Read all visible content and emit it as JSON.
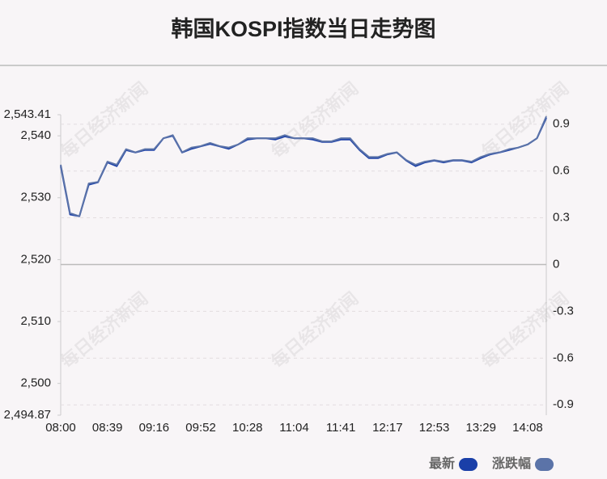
{
  "chart_data": {
    "type": "line",
    "title": "韩国KOSPI指数当日走势图",
    "watermark": "每日经济新闻",
    "categories": [
      "08:00",
      null,
      null,
      null,
      null,
      "08:39",
      null,
      null,
      null,
      null,
      "09:16",
      null,
      null,
      null,
      null,
      "09:52",
      null,
      null,
      null,
      null,
      "10:28",
      null,
      null,
      null,
      null,
      "11:04",
      null,
      null,
      null,
      null,
      "11:41",
      null,
      null,
      null,
      null,
      "12:17",
      null,
      null,
      null,
      null,
      "12:53",
      null,
      null,
      null,
      null,
      "13:29",
      null,
      null,
      null,
      null,
      "14:08",
      null,
      null
    ],
    "series": [
      {
        "name": "最新",
        "color": "#1a3fa8",
        "values": [
          2535.1,
          2527.3,
          2527.0,
          2532.1,
          2532.5,
          2535.7,
          2535.1,
          2537.7,
          2537.3,
          2537.7,
          2537.7,
          2539.6,
          2540.0,
          2537.3,
          2537.9,
          2538.3,
          2538.7,
          2538.3,
          2537.9,
          2538.6,
          2539.4,
          2539.6,
          2539.6,
          2539.4,
          2539.9,
          2539.6,
          2539.6,
          2539.4,
          2539.0,
          2539.0,
          2539.4,
          2539.4,
          2537.7,
          2536.4,
          2536.4,
          2537.0,
          2537.3,
          2536.0,
          2535.1,
          2535.7,
          2536.0,
          2535.7,
          2536.0,
          2536.0,
          2535.7,
          2536.4,
          2537.0,
          2537.3,
          2537.7,
          2538.1,
          2538.6,
          2539.6,
          2542.9
        ]
      },
      {
        "name": "涨跌幅",
        "color": "#5b73a8",
        "axis": "y2",
        "values": [
          0.64,
          0.33,
          0.31,
          0.52,
          0.53,
          0.66,
          0.64,
          0.74,
          0.72,
          0.74,
          0.74,
          0.81,
          0.83,
          0.72,
          0.75,
          0.76,
          0.78,
          0.76,
          0.75,
          0.77,
          0.81,
          0.81,
          0.81,
          0.81,
          0.83,
          0.81,
          0.81,
          0.81,
          0.79,
          0.79,
          0.81,
          0.81,
          0.74,
          0.69,
          0.69,
          0.71,
          0.72,
          0.67,
          0.64,
          0.66,
          0.67,
          0.66,
          0.67,
          0.67,
          0.66,
          0.69,
          0.71,
          0.72,
          0.74,
          0.75,
          0.77,
          0.81,
          0.95
        ]
      }
    ],
    "ylim": [
      2494.87,
      2543.41
    ],
    "yticks": [
      {
        "value": 2494.87,
        "label": "2,494.87"
      },
      {
        "value": 2500,
        "label": "2,500"
      },
      {
        "value": 2510,
        "label": "2,510"
      },
      {
        "value": 2520,
        "label": "2,520"
      },
      {
        "value": 2530,
        "label": "2,530"
      },
      {
        "value": 2540,
        "label": "2,540"
      },
      {
        "value": 2543.41,
        "label": "2,543.41"
      }
    ],
    "y2lim": [
      -0.966,
      0.961
    ],
    "y2ticks": [
      -0.9,
      -0.6,
      -0.3,
      0,
      0.3,
      0.6,
      0.9
    ],
    "grid": true,
    "legend": "bottom-right"
  }
}
